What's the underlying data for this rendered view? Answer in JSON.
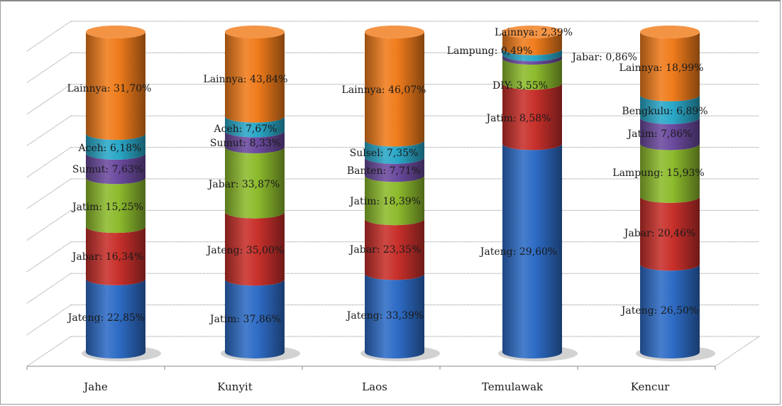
{
  "chart_data": {
    "type": "bar",
    "stacked": true,
    "percent_stacked": true,
    "style": "3d-cylinder",
    "title": "",
    "xlabel": "",
    "ylabel": "",
    "ylim": [
      0,
      100
    ],
    "grid": true,
    "legend": "none",
    "categories": [
      "Jahe",
      "Kunyit",
      "Laos",
      "Temulawak",
      "Kencur"
    ],
    "stacks": [
      {
        "category": "Jahe",
        "segments": [
          {
            "label": "Jateng: 22,85%",
            "value": 22.85,
            "color": "#2e6cc6"
          },
          {
            "label": "Jabar: 16,34%",
            "value": 16.34,
            "color": "#c8302b"
          },
          {
            "label": "Jatim: 15,25%",
            "value": 15.25,
            "color": "#8dbb2d"
          },
          {
            "label": "Sumut: 7,63%",
            "value": 7.63,
            "color": "#6b4a9e"
          },
          {
            "label": "Aceh: 6,18%",
            "value": 6.18,
            "color": "#2aa8c8"
          },
          {
            "label": "Lainnya: 31,70%",
            "value": 31.7,
            "color": "#f07c1c"
          }
        ]
      },
      {
        "category": "Kunyit",
        "segments": [
          {
            "label": "Jatim: 37,86%",
            "value": 37.86,
            "color": "#2e6cc6"
          },
          {
            "label": "Jateng: 35,00%",
            "value": 35.0,
            "color": "#c8302b"
          },
          {
            "label": "Jabar: 33,87%",
            "value": 33.87,
            "color": "#8dbb2d"
          },
          {
            "label": "Sumut: 8,33%",
            "value": 8.33,
            "color": "#6b4a9e"
          },
          {
            "label": "Aceh: 7,67%",
            "value": 7.67,
            "color": "#2aa8c8"
          },
          {
            "label": "Lainnya: 43,84%",
            "value": 43.84,
            "color": "#f07c1c"
          }
        ]
      },
      {
        "category": "Laos",
        "segments": [
          {
            "label": "Jateng: 33,39%",
            "value": 33.39,
            "color": "#2e6cc6"
          },
          {
            "label": "Jabar: 23,35%",
            "value": 23.35,
            "color": "#c8302b"
          },
          {
            "label": "Jatim: 18,39%",
            "value": 18.39,
            "color": "#8dbb2d"
          },
          {
            "label": "Banten: 7,71%",
            "value": 7.71,
            "color": "#6b4a9e"
          },
          {
            "label": "Sulsel: 7,35%",
            "value": 7.35,
            "color": "#2aa8c8"
          },
          {
            "label": "Lainnya: 46,07%",
            "value": 46.07,
            "color": "#f07c1c"
          }
        ]
      },
      {
        "category": "Temulawak",
        "segments": [
          {
            "label": "Jateng: 29,60%",
            "value": 29.6,
            "color": "#2e6cc6"
          },
          {
            "label": "Jatim: 8,58%",
            "value": 8.58,
            "color": "#c8302b"
          },
          {
            "label": "DIY: 3,55%",
            "value": 3.55,
            "color": "#8dbb2d"
          },
          {
            "label": "Lampung: 0,49%",
            "value": 0.49,
            "color": "#6b4a9e"
          },
          {
            "label": "Jabar: 0,86%",
            "value": 0.86,
            "color": "#2aa8c8"
          },
          {
            "label": "Lainnya: 2,39%",
            "value": 2.39,
            "color": "#f07c1c"
          }
        ]
      },
      {
        "category": "Kencur",
        "segments": [
          {
            "label": "Jateng: 26,50%",
            "value": 26.5,
            "color": "#2e6cc6"
          },
          {
            "label": "Jabar: 20,46%",
            "value": 20.46,
            "color": "#c8302b"
          },
          {
            "label": "Lampung: 15,93%",
            "value": 15.93,
            "color": "#8dbb2d"
          },
          {
            "label": "Jatim: 7,86%",
            "value": 7.86,
            "color": "#6b4a9e"
          },
          {
            "label": "Bengkulu: 6,89%",
            "value": 6.89,
            "color": "#2aa8c8"
          },
          {
            "label": "Lainnya: 18,99%",
            "value": 18.99,
            "color": "#f07c1c"
          }
        ]
      }
    ]
  }
}
